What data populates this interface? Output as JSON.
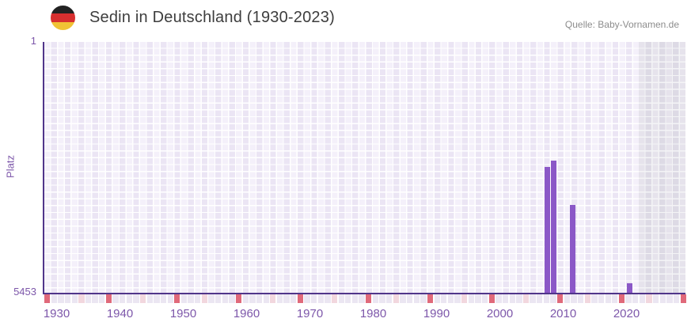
{
  "header": {
    "title": "Sedin in Deutschland (1930-2023)",
    "flag_icon": "germany-flag-icon",
    "flag_colors": [
      "#222222",
      "#d72f2f",
      "#f0c235"
    ],
    "source": "Quelle: Baby-Vornamen.de"
  },
  "axes": {
    "y_title": "Platz",
    "y_top_label": "1",
    "y_bottom_label": "5453",
    "x_tick_labels": [
      "1930",
      "1940",
      "1950",
      "1960",
      "1970",
      "1980",
      "1990",
      "2000",
      "2010",
      "2020"
    ]
  },
  "chart_data": {
    "type": "bar",
    "title": "Sedin in Deutschland (1930-2023)",
    "xlabel": "",
    "ylabel": "Platz",
    "x_range": [
      1930,
      2023
    ],
    "y_range": [
      1,
      5453
    ],
    "y_axis_inverted": true,
    "grid": true,
    "legend": false,
    "bar_color": "#8b58c7",
    "series": [
      {
        "name": "Platz",
        "points": [
          {
            "year": 2008,
            "rank": 2720
          },
          {
            "year": 2009,
            "rank": 2580
          },
          {
            "year": 2012,
            "rank": 3540
          },
          {
            "year": 2021,
            "rank": 5250
          }
        ]
      }
    ],
    "no_data_zone": {
      "from_year": 2022,
      "to_year": 2023
    },
    "x_ticks": [
      1930,
      1940,
      1950,
      1960,
      1970,
      1980,
      1990,
      2000,
      2010,
      2020
    ]
  },
  "strip_markers": {
    "decade_color": "#e0697a",
    "half_decade_color": "#f2d7de",
    "base_color": "#ebe6f2",
    "cell_count": 94,
    "red_cells": [
      0,
      9,
      19,
      28,
      37,
      47,
      56,
      65,
      75,
      84,
      93
    ],
    "pink_cells": [
      5,
      14,
      23,
      33,
      42,
      51,
      61,
      70,
      79,
      88
    ]
  },
  "colors": {
    "accent_purple": "#7d57aa",
    "axis_purple": "#50358a",
    "bar_purple": "#8b58c7",
    "grid_light": "#f4f0fa",
    "grid_dark": "#ebe5f4",
    "gray_zone_light": "#e6e3ec",
    "gray_zone_dark": "#dddae5",
    "title_text": "#3d3d3d",
    "source_text": "#8c8c8c"
  }
}
